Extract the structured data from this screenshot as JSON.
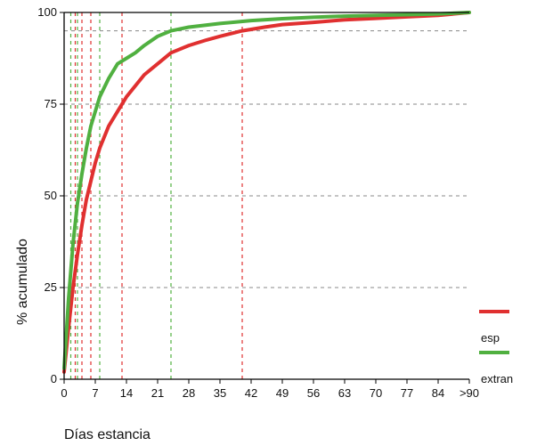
{
  "chart_data": {
    "type": "line",
    "title": "",
    "xlabel": "Días estancia",
    "ylabel": "% acumulado",
    "x_tick_labels": [
      "0",
      "7",
      "14",
      "21",
      "28",
      "35",
      "42",
      "49",
      "56",
      "63",
      "70",
      "77",
      "84",
      ">90"
    ],
    "x_tick_values": [
      0,
      7,
      14,
      21,
      28,
      35,
      42,
      49,
      56,
      63,
      70,
      77,
      84,
      91
    ],
    "y_tick_labels": [
      "0",
      "25",
      "50",
      "75",
      "100"
    ],
    "y_tick_values": [
      0,
      25,
      50,
      75,
      100
    ],
    "xlim": [
      0,
      91
    ],
    "ylim": [
      0,
      100
    ],
    "grid": {
      "horizontal_dashed_y": [
        25,
        50,
        75,
        95
      ],
      "vertical_markers": [
        {
          "series": "esp",
          "x": 2.5
        },
        {
          "series": "esp",
          "x": 4
        },
        {
          "series": "esp",
          "x": 6
        },
        {
          "series": "esp",
          "x": 13
        },
        {
          "series": "esp",
          "x": 40
        },
        {
          "series": "extran",
          "x": 1.5
        },
        {
          "series": "extran",
          "x": 3
        },
        {
          "series": "extran",
          "x": 8
        },
        {
          "series": "extran",
          "x": 24
        }
      ]
    },
    "legend_position": "right",
    "series": [
      {
        "name": "esp",
        "color": "#e03030",
        "x": [
          0,
          1,
          2,
          3,
          4,
          5,
          6,
          7,
          8,
          10,
          12,
          14,
          16,
          18,
          21,
          24,
          28,
          32,
          35,
          40,
          45,
          49,
          56,
          63,
          70,
          77,
          84,
          91
        ],
        "y": [
          2,
          14,
          25,
          34,
          42,
          49,
          54,
          59,
          63,
          69,
          73,
          77,
          80,
          83,
          86,
          89,
          91,
          92.5,
          93.5,
          95,
          96,
          96.7,
          97.3,
          98,
          98.4,
          98.8,
          99.2,
          100
        ]
      },
      {
        "name": "extran",
        "color": "#50b040",
        "x": [
          0,
          1,
          2,
          3,
          4,
          5,
          6,
          7,
          8,
          10,
          12,
          14,
          16,
          18,
          21,
          24,
          28,
          35,
          42,
          49,
          56,
          63,
          70,
          77,
          84,
          91
        ],
        "y": [
          3,
          22,
          37,
          48,
          56,
          63,
          69,
          73,
          77,
          82,
          86,
          87.5,
          89,
          91,
          93.5,
          95,
          96,
          97,
          97.8,
          98.3,
          98.7,
          99,
          99.2,
          99.4,
          99.6,
          100
        ]
      }
    ]
  }
}
